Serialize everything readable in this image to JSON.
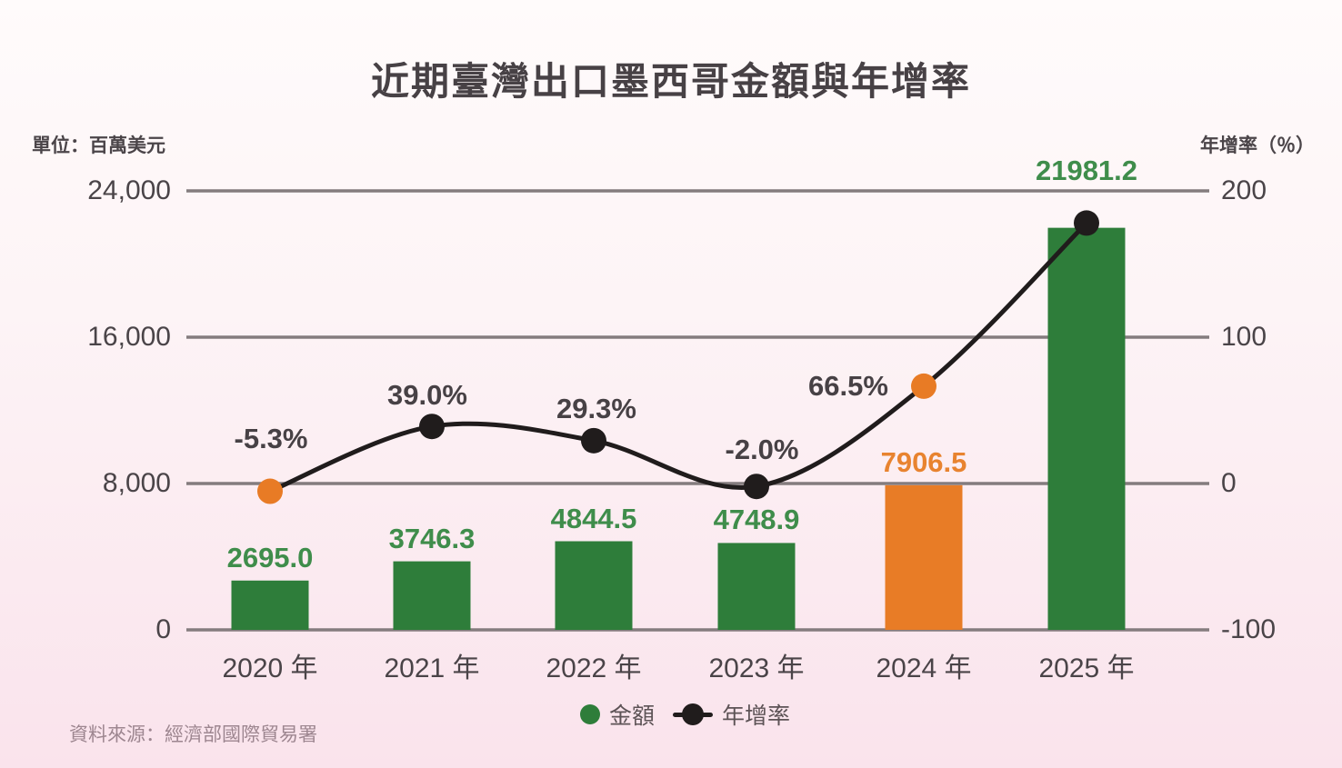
{
  "title": "近期臺灣出口墨西哥金額與年增率",
  "left_axis": {
    "unit_label": "單位：百萬美元",
    "ticks": [
      "24,000",
      "16,000",
      "8,000",
      "0"
    ]
  },
  "right_axis": {
    "unit_label": "年增率（％）",
    "ticks": [
      "200",
      "100",
      "0",
      "-100"
    ]
  },
  "legend": {
    "amount_label": "金額",
    "growth_label": "年增率"
  },
  "source": "資料來源：經濟部國際貿易署",
  "colors": {
    "bar_green": "#2e7d3a",
    "bar_orange": "#e87c26",
    "label_green": "#3f8d4b",
    "label_orange": "#e8832f",
    "line_black": "#201c1c",
    "point_orange": "#e87b25",
    "grid": "#847c7e"
  },
  "chart_data": {
    "type": "bar+line",
    "title": "近期臺灣出口墨西哥金額與年增率",
    "categories": [
      "2020 年",
      "2021 年",
      "2022 年",
      "2023 年",
      "2024 年",
      "2025 年"
    ],
    "grid": true,
    "legend_position": "bottom",
    "series": [
      {
        "name": "金額",
        "type": "bar",
        "axis": "left",
        "unit": "百萬美元",
        "ylim": [
          0,
          24000
        ],
        "axis_ticks": [
          0,
          8000,
          16000,
          24000
        ],
        "values": [
          2695.0,
          3746.3,
          4844.5,
          4748.9,
          7906.5,
          21981.2
        ],
        "value_labels": [
          "2695.0",
          "3746.3",
          "4844.5",
          "4748.9",
          "7906.5",
          "21981.2"
        ],
        "bar_color_keys": [
          "bar_green",
          "bar_green",
          "bar_green",
          "bar_green",
          "bar_orange",
          "bar_green"
        ],
        "label_color_keys": [
          "label_green",
          "label_green",
          "label_green",
          "label_green",
          "label_orange",
          "label_green"
        ]
      },
      {
        "name": "年增率",
        "type": "line",
        "axis": "right",
        "unit": "%",
        "ylim": [
          -100,
          200
        ],
        "axis_ticks": [
          -100,
          0,
          100,
          200
        ],
        "values": [
          -5.3,
          39.0,
          29.3,
          -2.0,
          66.5,
          178.0
        ],
        "point_labels": [
          "-5.3%",
          "39.0%",
          "29.3%",
          "-2.0%",
          "66.5%",
          ""
        ],
        "point_color_keys": [
          "point_orange",
          "line_black",
          "line_black",
          "line_black",
          "point_orange",
          "line_black"
        ],
        "note_2023_point": "orange (negative growth)",
        "note_2025_point": "black, value unlabeled (~178%, estimated from axis position)"
      }
    ]
  }
}
